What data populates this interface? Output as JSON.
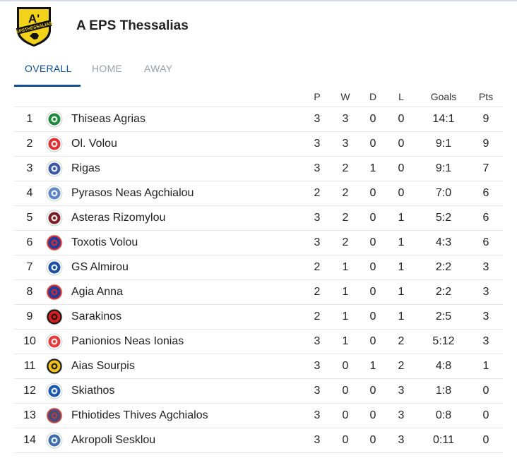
{
  "league": {
    "title": "A EPS Thessalias",
    "logo_text_top": "A'",
    "logo_text_band": "EPSTHESSALIAS"
  },
  "tabs": [
    {
      "label": "OVERALL",
      "active": true
    },
    {
      "label": "HOME",
      "active": false
    },
    {
      "label": "AWAY",
      "active": false
    }
  ],
  "columns": {
    "p": "P",
    "w": "W",
    "d": "D",
    "l": "L",
    "goals": "Goals",
    "pts": "Pts"
  },
  "colors": {
    "accent": "#0e4f95",
    "inactive_tab": "#9aa0a6",
    "row_border": "#e3e6ea"
  },
  "standings": [
    {
      "pos": "1",
      "team": "Thiseas Agrias",
      "p": "3",
      "w": "3",
      "d": "0",
      "l": "0",
      "goals": "14:1",
      "pts": "9",
      "crest": {
        "icon": "thiseas-crest-icon",
        "c1": "#1f8a3c",
        "c2": "#ffffff"
      }
    },
    {
      "pos": "2",
      "team": "Ol. Volou",
      "p": "3",
      "w": "3",
      "d": "0",
      "l": "0",
      "goals": "9:1",
      "pts": "9",
      "crest": {
        "icon": "olvolou-crest-icon",
        "c1": "#e03030",
        "c2": "#ffffff"
      }
    },
    {
      "pos": "3",
      "team": "Rigas",
      "p": "3",
      "w": "2",
      "d": "1",
      "l": "0",
      "goals": "9:1",
      "pts": "7",
      "crest": {
        "icon": "rigas-crest-icon",
        "c1": "#3a5aa8",
        "c2": "#ffffff"
      }
    },
    {
      "pos": "4",
      "team": "Pyrasos Neas Agchialou",
      "p": "2",
      "w": "2",
      "d": "0",
      "l": "0",
      "goals": "7:0",
      "pts": "6",
      "crest": {
        "icon": "pyrasos-crest-icon",
        "c1": "#5d86c5",
        "c2": "#ffffff"
      }
    },
    {
      "pos": "5",
      "team": "Asteras Rizomylou",
      "p": "3",
      "w": "2",
      "d": "0",
      "l": "1",
      "goals": "5:2",
      "pts": "6",
      "crest": {
        "icon": "asteras-crest-icon",
        "c1": "#7a1f25",
        "c2": "#ffffff"
      }
    },
    {
      "pos": "6",
      "team": "Toxotis Volou",
      "p": "3",
      "w": "2",
      "d": "0",
      "l": "1",
      "goals": "4:3",
      "pts": "6",
      "crest": {
        "icon": "toxotis-crest-icon",
        "c1": "#1b3f9a",
        "c2": "#e32a2a"
      }
    },
    {
      "pos": "7",
      "team": "GS Almirou",
      "p": "2",
      "w": "1",
      "d": "0",
      "l": "1",
      "goals": "2:2",
      "pts": "3",
      "crest": {
        "icon": "almirou-crest-icon",
        "c1": "#1c4fa0",
        "c2": "#ffffff"
      }
    },
    {
      "pos": "8",
      "team": "Agia Anna",
      "p": "2",
      "w": "1",
      "d": "0",
      "l": "1",
      "goals": "2:2",
      "pts": "3",
      "crest": {
        "icon": "agia-anna-crest-icon",
        "c1": "#1d3f9c",
        "c2": "#e02828"
      }
    },
    {
      "pos": "9",
      "team": "Sarakinos",
      "p": "2",
      "w": "1",
      "d": "0",
      "l": "1",
      "goals": "2:5",
      "pts": "3",
      "crest": {
        "icon": "sarakinos-crest-icon",
        "c1": "#d62020",
        "c2": "#111111"
      }
    },
    {
      "pos": "10",
      "team": "Panionios Neas Ionias",
      "p": "3",
      "w": "1",
      "d": "0",
      "l": "2",
      "goals": "5:12",
      "pts": "3",
      "crest": {
        "icon": "panionios-crest-icon",
        "c1": "#e33a3a",
        "c2": "#ffffff"
      }
    },
    {
      "pos": "11",
      "team": "Aias Sourpis",
      "p": "3",
      "w": "0",
      "d": "1",
      "l": "2",
      "goals": "4:8",
      "pts": "1",
      "crest": {
        "icon": "aias-crest-icon",
        "c1": "#f2c21c",
        "c2": "#111111"
      }
    },
    {
      "pos": "12",
      "team": "Skiathos",
      "p": "3",
      "w": "0",
      "d": "0",
      "l": "3",
      "goals": "1:8",
      "pts": "0",
      "crest": {
        "icon": "skiathos-crest-icon",
        "c1": "#1b58b0",
        "c2": "#ffffff"
      }
    },
    {
      "pos": "13",
      "team": "Fthiotides Thives Agchialos",
      "p": "3",
      "w": "0",
      "d": "0",
      "l": "3",
      "goals": "0:8",
      "pts": "0",
      "crest": {
        "icon": "fthiotides-crest-icon",
        "c1": "#3d4f7c",
        "c2": "#c43a3a"
      }
    },
    {
      "pos": "14",
      "team": "Akropoli Sesklou",
      "p": "3",
      "w": "0",
      "d": "0",
      "l": "3",
      "goals": "0:11",
      "pts": "0",
      "crest": {
        "icon": "akropoli-crest-icon",
        "c1": "#3d6fb0",
        "c2": "#ffffff"
      }
    }
  ]
}
